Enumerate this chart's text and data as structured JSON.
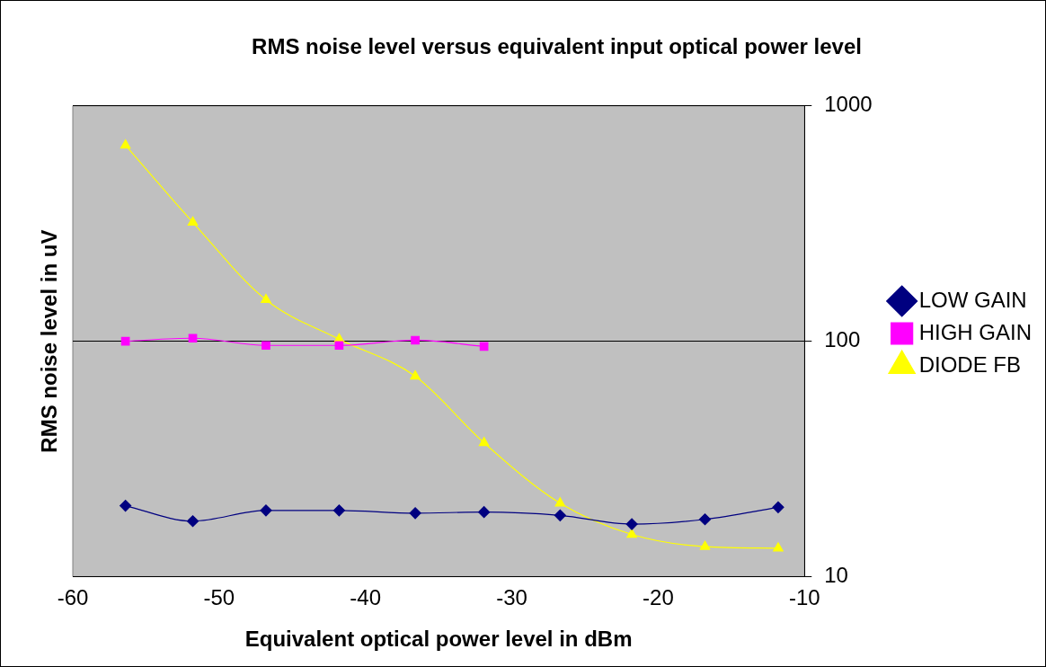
{
  "chart_data": {
    "type": "line",
    "title": "RMS noise level versus equivalent input optical power level",
    "xlabel": "Equivalent optical power level in dBm",
    "ylabel": "RMS noise level in uV",
    "x": [
      -56.4,
      -51.8,
      -46.8,
      -41.8,
      -36.6,
      -31.9,
      -26.7,
      -21.8,
      -16.8,
      -11.8
    ],
    "series": [
      {
        "name": "LOW GAIN",
        "color": "#000080",
        "marker": "diamond",
        "values": [
          20,
          17.2,
          19.1,
          19.1,
          18.6,
          18.8,
          18.2,
          16.7,
          17.5,
          19.7
        ]
      },
      {
        "name": "HIGH GAIN",
        "color": "#ff00ff",
        "marker": "square",
        "values": [
          100,
          103,
          96,
          96,
          101,
          95,
          null,
          null,
          null,
          null
        ]
      },
      {
        "name": "DIODE FB",
        "color": "#ffff00",
        "marker": "triangle",
        "values": [
          680,
          320,
          150,
          102,
          71,
          37,
          20.5,
          15.1,
          13.4,
          13.2
        ]
      }
    ],
    "xlim": [
      -60,
      -10
    ],
    "xticks": [
      -60,
      -50,
      -40,
      -30,
      -20,
      -10
    ],
    "ylim": [
      10,
      1000
    ],
    "yticks": [
      10,
      100,
      1000
    ],
    "log": "y",
    "grid": "y",
    "legend": "right"
  }
}
